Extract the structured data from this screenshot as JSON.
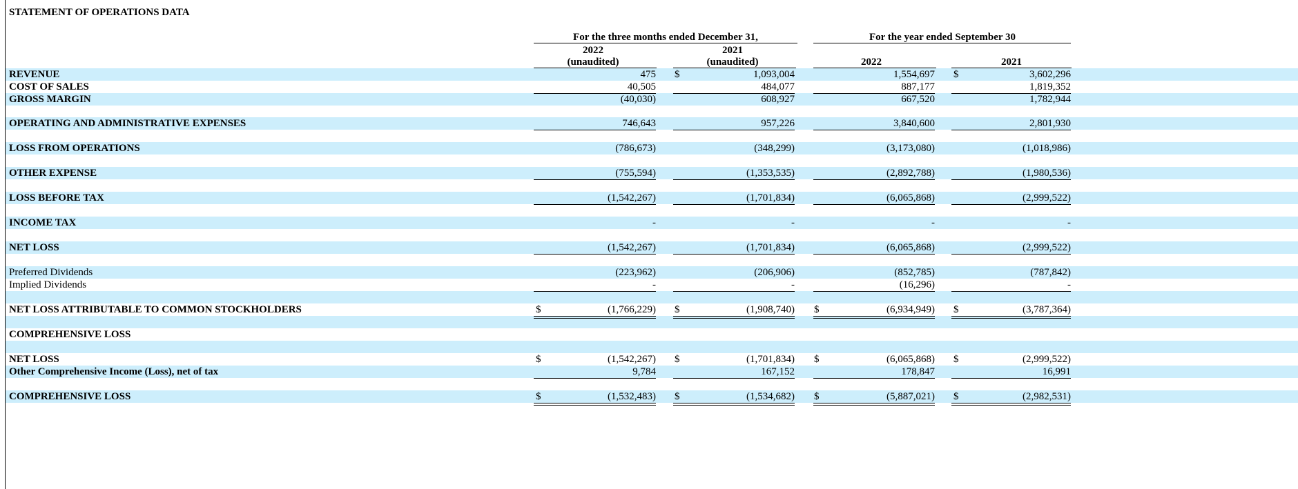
{
  "title": "STATEMENT OF OPERATIONS DATA",
  "headers": {
    "group1": "For the three months ended December 31,",
    "group2": "For the year ended September 30",
    "col1_year": "2022",
    "col1_note": "(unaudited)",
    "col2_year": "2021",
    "col2_note": "(unaudited)",
    "col3_year": "2022",
    "col4_year": "2021"
  },
  "currency_symbol": "$",
  "rows": [
    {
      "label": "REVENUE",
      "bold": true,
      "values": [
        "475",
        "1,093,004",
        "1,554,697",
        "3,602,296"
      ],
      "dollar": [
        false,
        true,
        false,
        true
      ]
    },
    {
      "label": "COST OF SALES",
      "bold": true,
      "values": [
        "40,505",
        "484,077",
        "887,177",
        "1,819,352"
      ],
      "dollar": [
        false,
        false,
        false,
        false
      ]
    },
    {
      "label": "GROSS MARGIN",
      "bold": true,
      "values": [
        "(40,030)",
        "608,927",
        "667,520",
        "1,782,944"
      ],
      "dollar": [
        false,
        false,
        false,
        false
      ]
    },
    {
      "label": "OPERATING AND ADMINISTRATIVE EXPENSES",
      "bold": true,
      "values": [
        "746,643",
        "957,226",
        "3,840,600",
        "2,801,930"
      ],
      "dollar": [
        false,
        false,
        false,
        false
      ]
    },
    {
      "label": "LOSS FROM OPERATIONS",
      "bold": true,
      "values": [
        "(786,673)",
        "(348,299)",
        "(3,173,080)",
        "(1,018,986)"
      ],
      "dollar": [
        false,
        false,
        false,
        false
      ]
    },
    {
      "label": "OTHER EXPENSE",
      "bold": true,
      "values": [
        "(755,594)",
        "(1,353,535)",
        "(2,892,788)",
        "(1,980,536)"
      ],
      "dollar": [
        false,
        false,
        false,
        false
      ]
    },
    {
      "label": "LOSS BEFORE TAX",
      "bold": true,
      "values": [
        "(1,542,267)",
        "(1,701,834)",
        "(6,065,868)",
        "(2,999,522)"
      ],
      "dollar": [
        false,
        false,
        false,
        false
      ]
    },
    {
      "label": "INCOME TAX",
      "bold": true,
      "values": [
        "-",
        "-",
        "-",
        "-"
      ],
      "dollar": [
        false,
        false,
        false,
        false
      ]
    },
    {
      "label": "NET LOSS",
      "bold": true,
      "values": [
        "(1,542,267)",
        "(1,701,834)",
        "(6,065,868)",
        "(2,999,522)"
      ],
      "dollar": [
        false,
        false,
        false,
        false
      ]
    },
    {
      "label": "Preferred Dividends",
      "bold": false,
      "values": [
        "(223,962)",
        "(206,906)",
        "(852,785)",
        "(787,842)"
      ],
      "dollar": [
        false,
        false,
        false,
        false
      ]
    },
    {
      "label": "Implied Dividends",
      "bold": false,
      "values": [
        "-",
        "-",
        "(16,296)",
        "-"
      ],
      "dollar": [
        false,
        false,
        false,
        false
      ]
    },
    {
      "label": "NET LOSS ATTRIBUTABLE TO COMMON STOCKHOLDERS",
      "bold": true,
      "values": [
        "(1,766,229)",
        "(1,908,740)",
        "(6,934,949)",
        "(3,787,364)"
      ],
      "dollar": [
        true,
        true,
        true,
        true
      ]
    },
    {
      "label": "COMPREHENSIVE LOSS",
      "bold": true,
      "values": [
        "",
        "",
        "",
        ""
      ],
      "dollar": [
        false,
        false,
        false,
        false
      ]
    },
    {
      "label": "NET LOSS",
      "bold": true,
      "values": [
        "(1,542,267)",
        "(1,701,834)",
        "(6,065,868)",
        "(2,999,522)"
      ],
      "dollar": [
        true,
        true,
        true,
        true
      ]
    },
    {
      "label": "Other Comprehensive Income (Loss), net of tax",
      "bold": true,
      "values": [
        "9,784",
        "167,152",
        "178,847",
        "16,991"
      ],
      "dollar": [
        false,
        false,
        false,
        false
      ]
    },
    {
      "label": "COMPREHENSIVE LOSS",
      "bold": true,
      "values": [
        "(1,532,483)",
        "(1,534,682)",
        "(5,887,021)",
        "(2,982,531)"
      ],
      "dollar": [
        true,
        true,
        true,
        true
      ]
    }
  ]
}
